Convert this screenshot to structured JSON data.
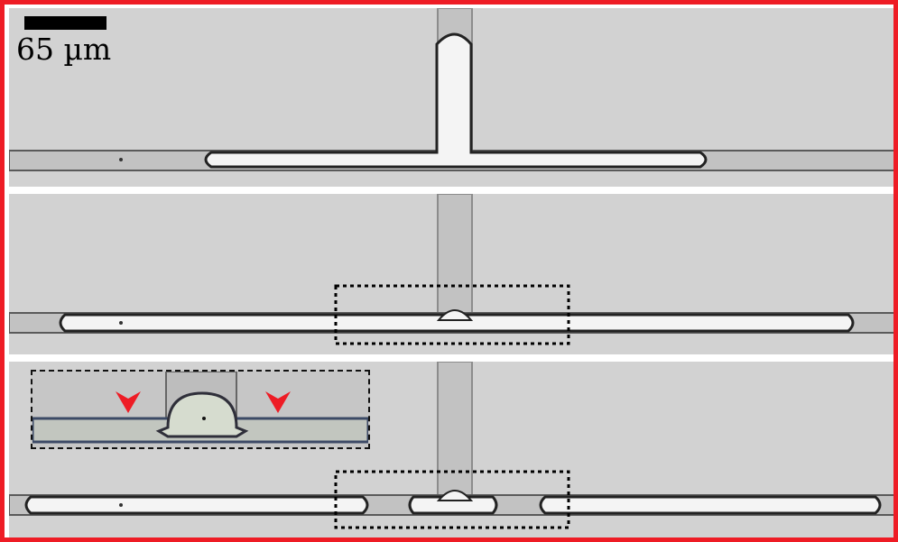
{
  "scale_bar": {
    "label": "65 µm"
  },
  "colors": {
    "frame": "#ee1c25",
    "background": "#d2d2d2",
    "channel": "#c4c4c4",
    "droplet_fill": "#f4f4f4",
    "arrowhead": "#ee1c25"
  },
  "panels": [
    {
      "name": "panel-top",
      "description_shown": false
    },
    {
      "name": "panel-middle",
      "highlight_box": true
    },
    {
      "name": "panel-bottom",
      "highlight_box": true,
      "inset": true
    }
  ],
  "inset": {
    "arrowheads": 2,
    "icon": "arrowhead-icon"
  }
}
